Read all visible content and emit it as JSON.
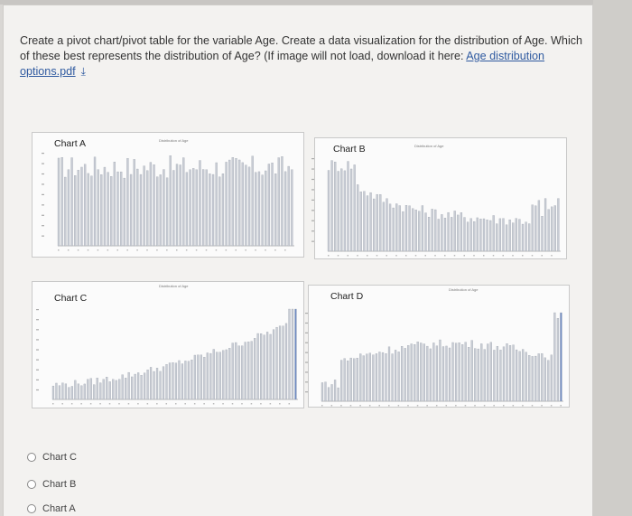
{
  "question": {
    "text": "Create a pivot chart/pivot table for the variable Age. Create a data visualization for the distribution of Age. Which of these best represents the distribution of Age? (If image will not load, download it here: ",
    "link_text": "Age distribution options.pdf",
    "download_icon": "download-icon"
  },
  "charts": [
    {
      "label": "Chart A",
      "mini_title": "Distribution of Age"
    },
    {
      "label": "Chart B",
      "mini_title": "Distribution of Age"
    },
    {
      "label": "Chart C",
      "mini_title": "Distribution of Age"
    },
    {
      "label": "Chart D",
      "mini_title": "Distribution of Age"
    }
  ],
  "options": [
    {
      "label": "Chart C"
    },
    {
      "label": "Chart B"
    },
    {
      "label": "Chart A"
    }
  ],
  "colors": {
    "bars": "#c8ccd4",
    "bar_stroke": "#9aa0ab",
    "highlight": "#6f8cc4"
  }
}
